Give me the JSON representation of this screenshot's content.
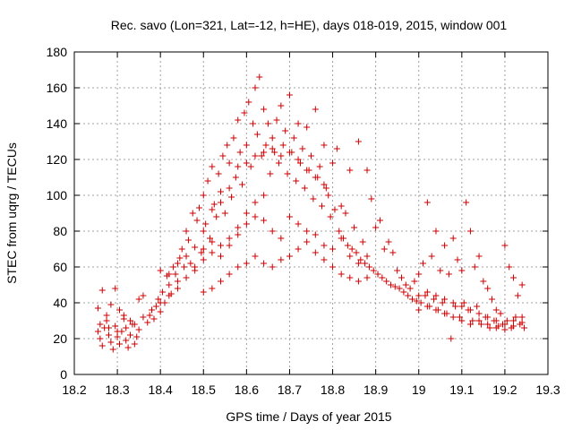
{
  "chart_data": {
    "type": "scatter",
    "title": "Rec. savo (Lon=321, Lat=-12, h=HE), days 018-019, 2015, window 001",
    "xlabel": "GPS time / Days of year 2015",
    "ylabel": "STEC from uqrg / TECUs",
    "xlim": [
      18.2,
      19.3
    ],
    "ylim": [
      0,
      180
    ],
    "xticks": [
      "18.2",
      "18.3",
      "18.4",
      "18.5",
      "18.6",
      "18.7",
      "18.8",
      "18.9",
      "19",
      "19.1",
      "19.2",
      "19.3"
    ],
    "yticks": [
      "0",
      "20",
      "40",
      "60",
      "80",
      "100",
      "120",
      "140",
      "160",
      "180"
    ],
    "grid": true,
    "marker": "+",
    "color": "#cc0000",
    "series": [
      {
        "name": "STEC",
        "points": [
          [
            18.255,
            24
          ],
          [
            18.26,
            20
          ],
          [
            18.265,
            16
          ],
          [
            18.27,
            26
          ],
          [
            18.275,
            30
          ],
          [
            18.28,
            22
          ],
          [
            18.285,
            18
          ],
          [
            18.29,
            14
          ],
          [
            18.295,
            27
          ],
          [
            18.3,
            21
          ],
          [
            18.305,
            17
          ],
          [
            18.31,
            24
          ],
          [
            18.315,
            31
          ],
          [
            18.32,
            19
          ],
          [
            18.325,
            15
          ],
          [
            18.33,
            22
          ],
          [
            18.335,
            28
          ],
          [
            18.34,
            17
          ],
          [
            18.345,
            21
          ],
          [
            18.35,
            25
          ],
          [
            18.255,
            37
          ],
          [
            18.265,
            47
          ],
          [
            18.275,
            33
          ],
          [
            18.285,
            39
          ],
          [
            18.295,
            48
          ],
          [
            18.305,
            36
          ],
          [
            18.315,
            33
          ],
          [
            18.33,
            30
          ],
          [
            18.35,
            42
          ],
          [
            18.36,
            44
          ],
          [
            18.37,
            29
          ],
          [
            18.375,
            33
          ],
          [
            18.38,
            36
          ],
          [
            18.385,
            31
          ],
          [
            18.39,
            38
          ],
          [
            18.395,
            42
          ],
          [
            18.4,
            35
          ],
          [
            18.405,
            46
          ],
          [
            18.41,
            40
          ],
          [
            18.415,
            55
          ],
          [
            18.42,
            50
          ],
          [
            18.425,
            45
          ],
          [
            18.43,
            60
          ],
          [
            18.435,
            56
          ],
          [
            18.44,
            52
          ],
          [
            18.445,
            65
          ],
          [
            18.45,
            70
          ],
          [
            18.455,
            60
          ],
          [
            18.46,
            80
          ],
          [
            18.465,
            75
          ],
          [
            18.47,
            62
          ],
          [
            18.475,
            90
          ],
          [
            18.48,
            71
          ],
          [
            18.485,
            86
          ],
          [
            18.49,
            93
          ],
          [
            18.495,
            68
          ],
          [
            18.5,
            100
          ],
          [
            18.505,
            84
          ],
          [
            18.51,
            108
          ],
          [
            18.515,
            76
          ],
          [
            18.52,
            116
          ],
          [
            18.525,
            95
          ],
          [
            18.53,
            88
          ],
          [
            18.535,
            112
          ],
          [
            18.54,
            102
          ],
          [
            18.545,
            122
          ],
          [
            18.55,
            90
          ],
          [
            18.555,
            128
          ],
          [
            18.56,
            118
          ],
          [
            18.565,
            99
          ],
          [
            18.57,
            132
          ],
          [
            18.575,
            110
          ],
          [
            18.58,
            142
          ],
          [
            18.585,
            124
          ],
          [
            18.59,
            106
          ],
          [
            18.595,
            146
          ],
          [
            18.6,
            128
          ],
          [
            18.605,
            152
          ],
          [
            18.61,
            116
          ],
          [
            18.615,
            140
          ],
          [
            18.62,
            160
          ],
          [
            18.625,
            134
          ],
          [
            18.63,
            166
          ],
          [
            18.635,
            122
          ],
          [
            18.64,
            148
          ],
          [
            18.645,
            128
          ],
          [
            18.65,
            140
          ],
          [
            18.655,
            112
          ],
          [
            18.66,
            132
          ],
          [
            18.665,
            124
          ],
          [
            18.67,
            142
          ],
          [
            18.675,
            118
          ],
          [
            18.68,
            150
          ],
          [
            18.685,
            128
          ],
          [
            18.69,
            136
          ],
          [
            18.695,
            112
          ],
          [
            18.7,
            156
          ],
          [
            18.705,
            124
          ],
          [
            18.71,
            132
          ],
          [
            18.715,
            108
          ],
          [
            18.72,
            140
          ],
          [
            18.725,
            118
          ],
          [
            18.73,
            126
          ],
          [
            18.735,
            104
          ],
          [
            18.74,
            138
          ],
          [
            18.745,
            114
          ],
          [
            18.75,
            122
          ],
          [
            18.755,
            98
          ],
          [
            18.76,
            148
          ],
          [
            18.765,
            110
          ],
          [
            18.77,
            116
          ],
          [
            18.775,
            94
          ],
          [
            18.78,
            128
          ],
          [
            18.785,
            104
          ],
          [
            18.79,
            100
          ],
          [
            18.795,
            88
          ],
          [
            18.8,
            118
          ],
          [
            18.805,
            92
          ],
          [
            18.81,
            126
          ],
          [
            18.815,
            80
          ],
          [
            18.82,
            94
          ],
          [
            18.825,
            76
          ],
          [
            18.83,
            90
          ],
          [
            18.835,
            72
          ],
          [
            18.84,
            114
          ],
          [
            18.845,
            70
          ],
          [
            18.85,
            82
          ],
          [
            18.855,
            68
          ],
          [
            18.86,
            130
          ],
          [
            18.865,
            64
          ],
          [
            18.87,
            74
          ],
          [
            18.875,
            62
          ],
          [
            18.88,
            114
          ],
          [
            18.885,
            60
          ],
          [
            18.89,
            98
          ],
          [
            18.895,
            58
          ],
          [
            18.9,
            82
          ],
          [
            18.905,
            56
          ],
          [
            18.91,
            86
          ],
          [
            18.915,
            54
          ],
          [
            18.92,
            70
          ],
          [
            18.925,
            52
          ],
          [
            18.93,
            74
          ],
          [
            18.935,
            50
          ],
          [
            18.94,
            68
          ],
          [
            18.945,
            49
          ],
          [
            18.95,
            58
          ],
          [
            18.955,
            48
          ],
          [
            18.96,
            54
          ],
          [
            18.965,
            46
          ],
          [
            18.97,
            50
          ],
          [
            18.975,
            44
          ],
          [
            18.98,
            48
          ],
          [
            18.985,
            42
          ],
          [
            18.99,
            52
          ],
          [
            18.995,
            41
          ],
          [
            19.0,
            56
          ],
          [
            19.005,
            40
          ],
          [
            19.01,
            62
          ],
          [
            19.015,
            44
          ],
          [
            19.02,
            96
          ],
          [
            19.025,
            38
          ],
          [
            19.03,
            66
          ],
          [
            19.035,
            42
          ],
          [
            19.04,
            80
          ],
          [
            19.045,
            36
          ],
          [
            19.05,
            58
          ],
          [
            19.055,
            40
          ],
          [
            19.06,
            72
          ],
          [
            19.065,
            34
          ],
          [
            19.07,
            56
          ],
          [
            19.075,
            20
          ],
          [
            19.08,
            76
          ],
          [
            19.085,
            38
          ],
          [
            19.09,
            64
          ],
          [
            19.095,
            32
          ],
          [
            19.1,
            58
          ],
          [
            19.105,
            40
          ],
          [
            19.11,
            96
          ],
          [
            19.115,
            36
          ],
          [
            19.12,
            80
          ],
          [
            19.125,
            30
          ],
          [
            19.13,
            60
          ],
          [
            19.135,
            38
          ],
          [
            19.14,
            66
          ],
          [
            19.145,
            28
          ],
          [
            19.15,
            52
          ],
          [
            19.155,
            32
          ],
          [
            19.16,
            48
          ],
          [
            19.165,
            26
          ],
          [
            19.17,
            42
          ],
          [
            19.175,
            30
          ],
          [
            19.18,
            36
          ],
          [
            19.185,
            27
          ],
          [
            19.19,
            34
          ],
          [
            19.195,
            28
          ],
          [
            19.2,
            72
          ],
          [
            19.205,
            30
          ],
          [
            19.21,
            60
          ],
          [
            19.215,
            26
          ],
          [
            19.22,
            54
          ],
          [
            19.225,
            32
          ],
          [
            19.23,
            44
          ],
          [
            19.235,
            28
          ],
          [
            19.24,
            50
          ],
          [
            19.245,
            26
          ],
          [
            18.5,
            70
          ],
          [
            18.52,
            74
          ],
          [
            18.54,
            66
          ],
          [
            18.56,
            72
          ],
          [
            18.58,
            78
          ],
          [
            18.6,
            84
          ],
          [
            18.62,
            88
          ],
          [
            18.64,
            86
          ],
          [
            18.66,
            80
          ],
          [
            18.68,
            76
          ],
          [
            18.7,
            88
          ],
          [
            18.72,
            84
          ],
          [
            18.74,
            80
          ],
          [
            18.76,
            78
          ],
          [
            18.78,
            72
          ],
          [
            18.8,
            70
          ],
          [
            18.82,
            76
          ],
          [
            18.84,
            66
          ],
          [
            18.86,
            62
          ],
          [
            18.88,
            66
          ],
          [
            18.5,
            46
          ],
          [
            18.52,
            48
          ],
          [
            18.54,
            52
          ],
          [
            18.56,
            56
          ],
          [
            18.58,
            60
          ],
          [
            18.6,
            62
          ],
          [
            18.62,
            66
          ],
          [
            18.64,
            62
          ],
          [
            18.66,
            60
          ],
          [
            18.68,
            64
          ],
          [
            18.7,
            66
          ],
          [
            18.72,
            70
          ],
          [
            18.74,
            74
          ],
          [
            18.76,
            68
          ],
          [
            18.78,
            64
          ],
          [
            18.8,
            60
          ],
          [
            18.82,
            56
          ],
          [
            18.84,
            54
          ],
          [
            18.86,
            52
          ],
          [
            18.88,
            54
          ],
          [
            18.4,
            58
          ],
          [
            18.42,
            56
          ],
          [
            18.44,
            62
          ],
          [
            18.46,
            66
          ],
          [
            18.48,
            58
          ],
          [
            18.5,
            80
          ],
          [
            18.52,
            92
          ],
          [
            18.54,
            96
          ],
          [
            18.56,
            104
          ],
          [
            18.58,
            116
          ],
          [
            18.6,
            118
          ],
          [
            18.62,
            122
          ],
          [
            18.64,
            124
          ],
          [
            18.66,
            126
          ],
          [
            18.68,
            122
          ],
          [
            18.7,
            124
          ],
          [
            18.72,
            120
          ],
          [
            18.74,
            114
          ],
          [
            18.76,
            110
          ],
          [
            18.78,
            106
          ],
          [
            18.26,
            28
          ],
          [
            18.28,
            26
          ],
          [
            18.3,
            24
          ],
          [
            18.32,
            26
          ],
          [
            18.34,
            28
          ],
          [
            18.36,
            32
          ],
          [
            18.38,
            36
          ],
          [
            18.4,
            40
          ],
          [
            18.42,
            44
          ],
          [
            18.44,
            48
          ],
          [
            18.46,
            54
          ],
          [
            18.48,
            60
          ],
          [
            18.5,
            64
          ],
          [
            18.52,
            68
          ],
          [
            18.54,
            72
          ],
          [
            18.56,
            76
          ],
          [
            18.58,
            82
          ],
          [
            18.6,
            90
          ],
          [
            18.62,
            96
          ],
          [
            18.64,
            100
          ],
          [
            19.0,
            44
          ],
          [
            19.02,
            46
          ],
          [
            19.04,
            44
          ],
          [
            19.06,
            42
          ],
          [
            19.08,
            40
          ],
          [
            19.1,
            38
          ],
          [
            19.12,
            36
          ],
          [
            19.14,
            34
          ],
          [
            19.16,
            32
          ],
          [
            19.18,
            30
          ],
          [
            19.2,
            28
          ],
          [
            19.22,
            30
          ],
          [
            19.24,
            32
          ],
          [
            19.0,
            36
          ],
          [
            19.02,
            38
          ],
          [
            19.04,
            36
          ],
          [
            19.06,
            34
          ],
          [
            19.08,
            32
          ],
          [
            19.1,
            30
          ],
          [
            19.12,
            28
          ],
          [
            19.14,
            30
          ],
          [
            19.16,
            28
          ],
          [
            19.18,
            26
          ],
          [
            19.2,
            25
          ],
          [
            19.22,
            27
          ],
          [
            19.24,
            29
          ]
        ]
      }
    ]
  }
}
